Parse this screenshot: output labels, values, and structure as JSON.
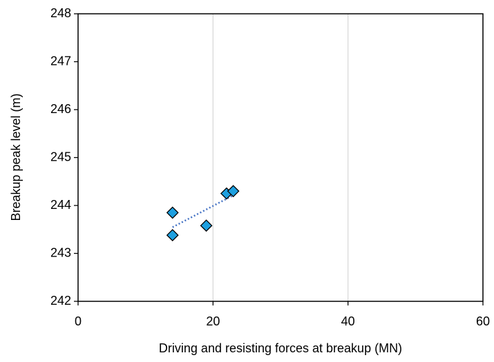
{
  "chart_data": {
    "type": "scatter",
    "x_label": "Driving and resisting forces at breakup (MN)",
    "y_label": "Breakup peak level (m)",
    "x": [
      14,
      14,
      19,
      22,
      23
    ],
    "y": [
      243.85,
      243.38,
      243.58,
      244.25,
      244.3
    ],
    "color": "#1ea0e0",
    "trendline": "linear",
    "trendline_color": "#4472c4",
    "xlim": [
      0,
      60
    ],
    "xticks": [
      0,
      20,
      40,
      60
    ],
    "ylim": [
      242,
      248
    ],
    "yticks": [
      242,
      243,
      244,
      245,
      246,
      247,
      248
    ],
    "grid": "x"
  }
}
